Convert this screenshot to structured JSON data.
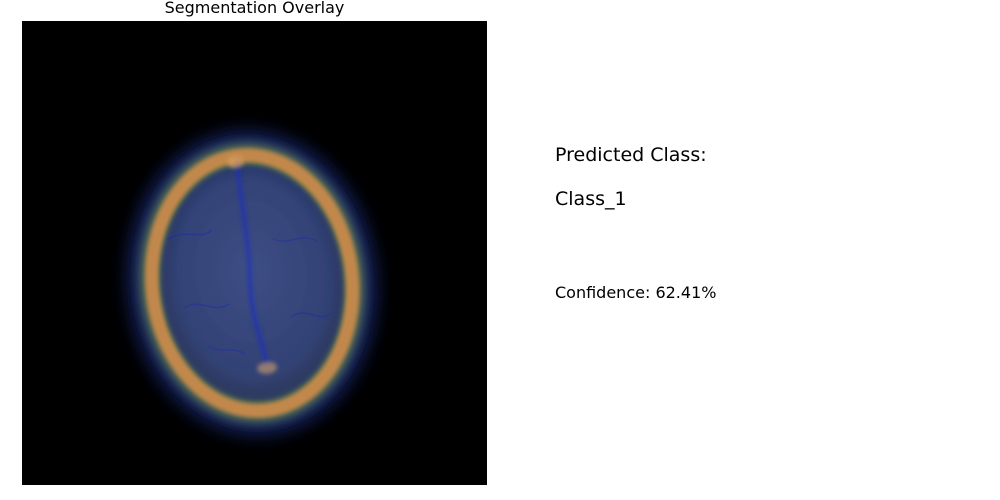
{
  "figure": {
    "overlay_title": "Segmentation Overlay",
    "image_kind": "brain-mri-axial-segmentation-overlay"
  },
  "prediction": {
    "heading": "Predicted Class:",
    "class_label": "Class_1",
    "confidence_text": "Confidence: 62.41%",
    "confidence_value": 62.41
  },
  "colors": {
    "background": "#ffffff",
    "scan_background": "#000000",
    "overlay_outer": "#2a3f9a",
    "overlay_ring_green": "#5f7a4e",
    "overlay_ring_orange": "#c4894a",
    "overlay_interior": "#2c3a6e",
    "text": "#000000"
  }
}
